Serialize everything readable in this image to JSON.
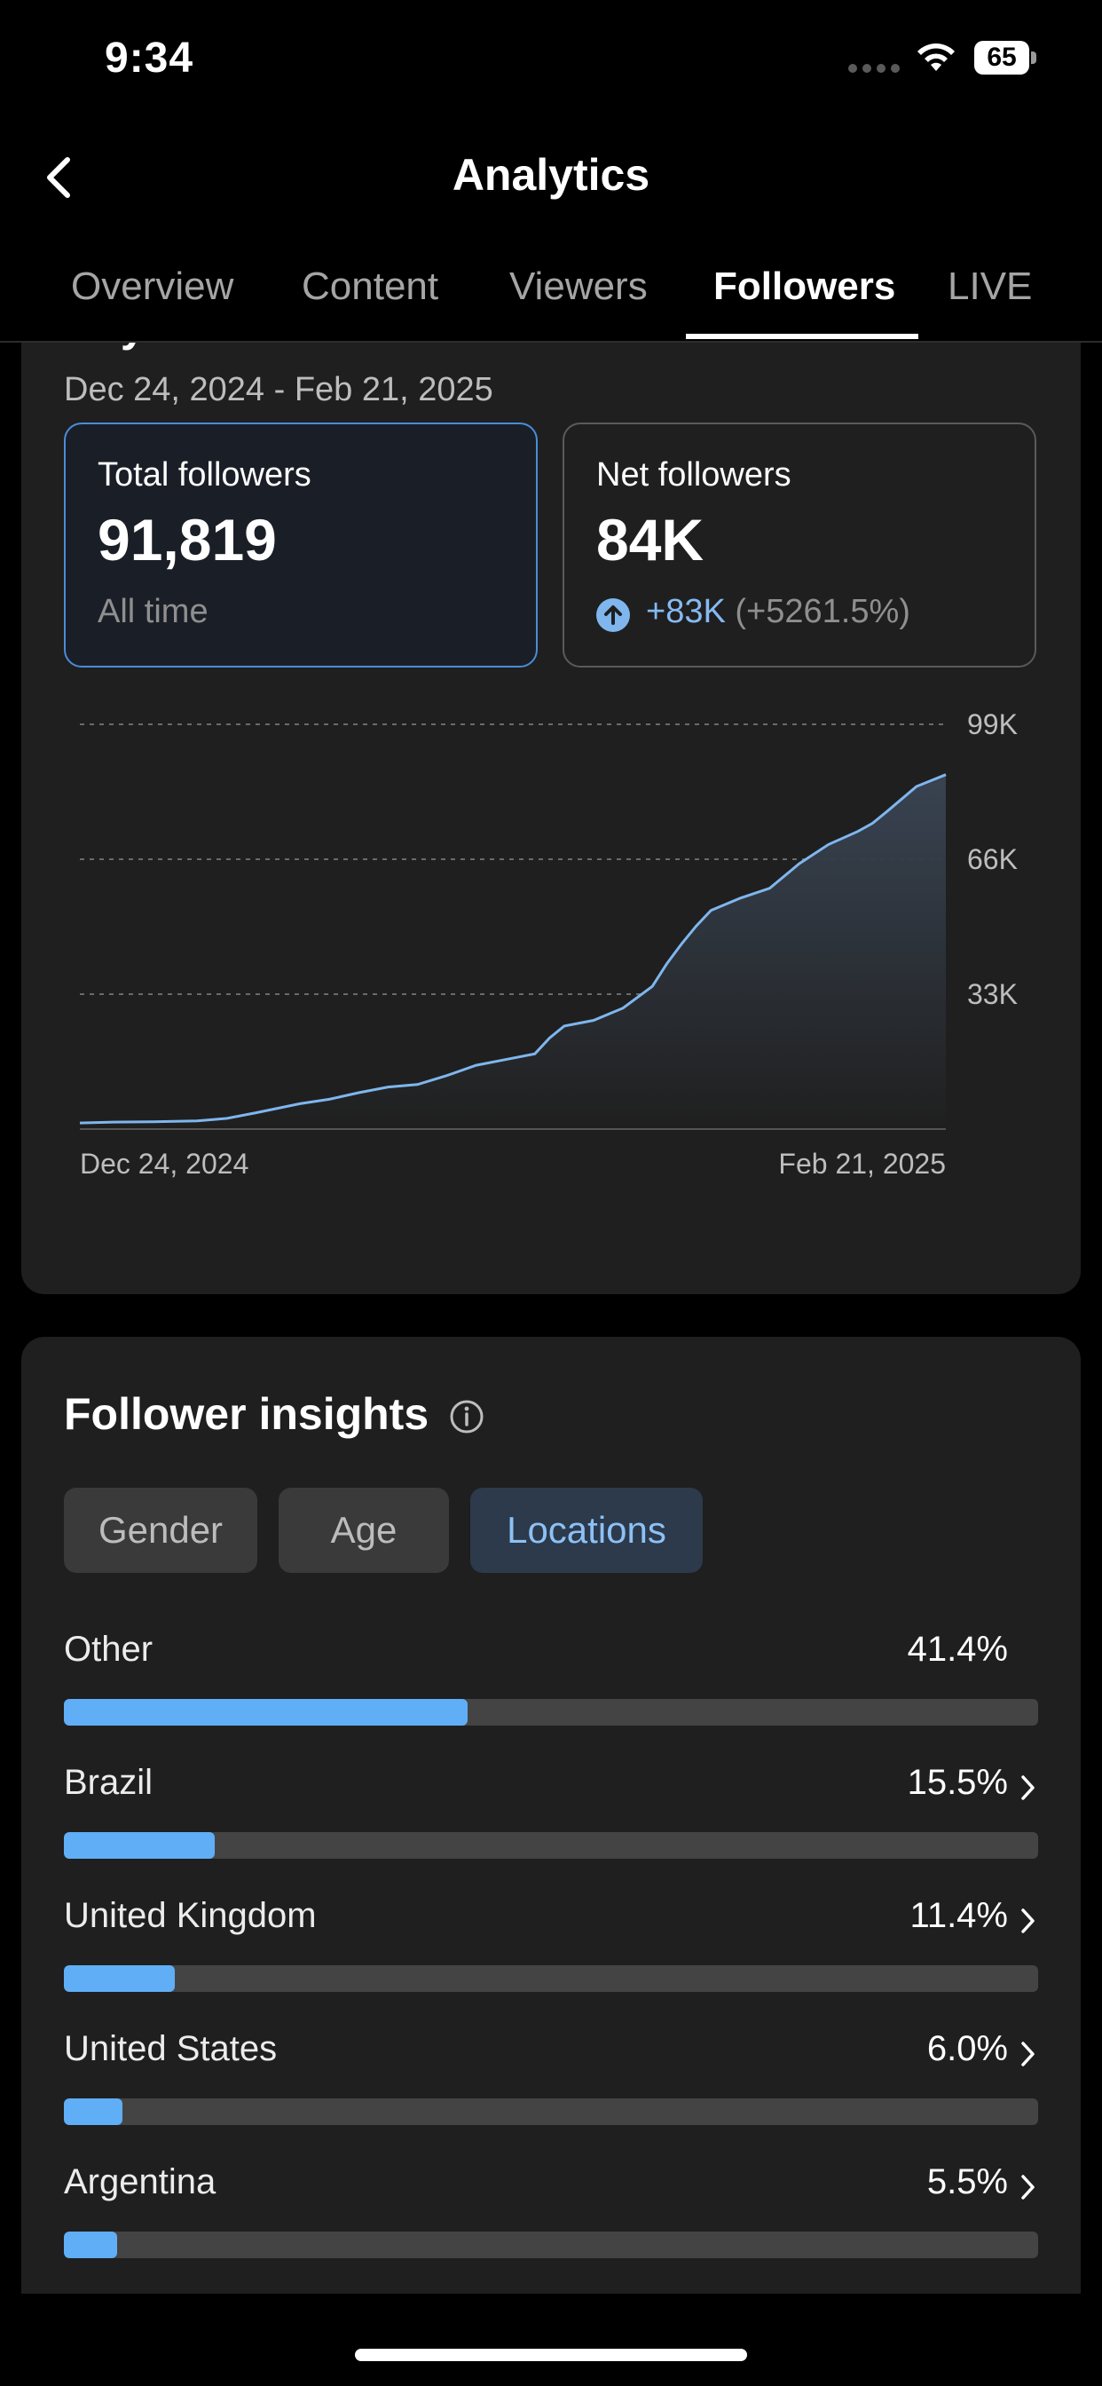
{
  "status_bar": {
    "time": "9:34",
    "battery": "65"
  },
  "header": {
    "title": "Analytics"
  },
  "tabs": [
    {
      "label": "Overview",
      "active": false
    },
    {
      "label": "Content",
      "active": false
    },
    {
      "label": "Viewers",
      "active": false
    },
    {
      "label": "Followers",
      "active": true
    },
    {
      "label": "LIVE",
      "active": false
    }
  ],
  "key_metrics": {
    "title": "Key metrics",
    "date_range": "Dec 24, 2024 - Feb 21, 2025",
    "total": {
      "label": "Total followers",
      "value": "91,819",
      "sub": "All time"
    },
    "net": {
      "label": "Net followers",
      "value": "84K",
      "delta": "+83K",
      "delta_pct": "(+5261.5%)"
    }
  },
  "chart_data": {
    "type": "area",
    "x_start_label": "Dec 24, 2024",
    "x_end_label": "Feb 21, 2025",
    "y_ticks": [
      "99K",
      "66K",
      "33K"
    ],
    "ylim": [
      0,
      99000
    ],
    "grid": true,
    "x": [
      "2024-12-24",
      "2024-12-26",
      "2024-12-29",
      "2025-01-01",
      "2025-01-03",
      "2025-01-05",
      "2025-01-08",
      "2025-01-10",
      "2025-01-12",
      "2025-01-14",
      "2025-01-16",
      "2025-01-18",
      "2025-01-20",
      "2025-01-22",
      "2025-01-24",
      "2025-01-25",
      "2025-01-26",
      "2025-01-28",
      "2025-01-30",
      "2025-02-01",
      "2025-02-02",
      "2025-02-03",
      "2025-02-04",
      "2025-02-05",
      "2025-02-07",
      "2025-02-09",
      "2025-02-11",
      "2025-02-13",
      "2025-02-15",
      "2025-02-16",
      "2025-02-17",
      "2025-02-19",
      "2025-02-21"
    ],
    "values": [
      1500,
      1700,
      1800,
      2000,
      2600,
      4000,
      6200,
      7300,
      8900,
      10300,
      10900,
      13100,
      15600,
      17000,
      18400,
      22300,
      25200,
      26600,
      29600,
      34900,
      40500,
      45300,
      49700,
      53500,
      56500,
      58900,
      64900,
      69600,
      72800,
      74800,
      77700,
      83800,
      86700
    ],
    "series_color": "#7fb6ee"
  },
  "insights": {
    "title": "Follower insights",
    "chips": [
      {
        "label": "Gender",
        "active": false
      },
      {
        "label": "Age",
        "active": false
      },
      {
        "label": "Locations",
        "active": true
      }
    ],
    "locations": [
      {
        "name": "Other",
        "pct": "41.4%",
        "value": 41.4,
        "chevron": false
      },
      {
        "name": "Brazil",
        "pct": "15.5%",
        "value": 15.5,
        "chevron": true
      },
      {
        "name": "United Kingdom",
        "pct": "11.4%",
        "value": 11.4,
        "chevron": true
      },
      {
        "name": "United States",
        "pct": "6.0%",
        "value": 6.0,
        "chevron": true
      },
      {
        "name": "Argentina",
        "pct": "5.5%",
        "value": 5.5,
        "chevron": true
      }
    ]
  }
}
